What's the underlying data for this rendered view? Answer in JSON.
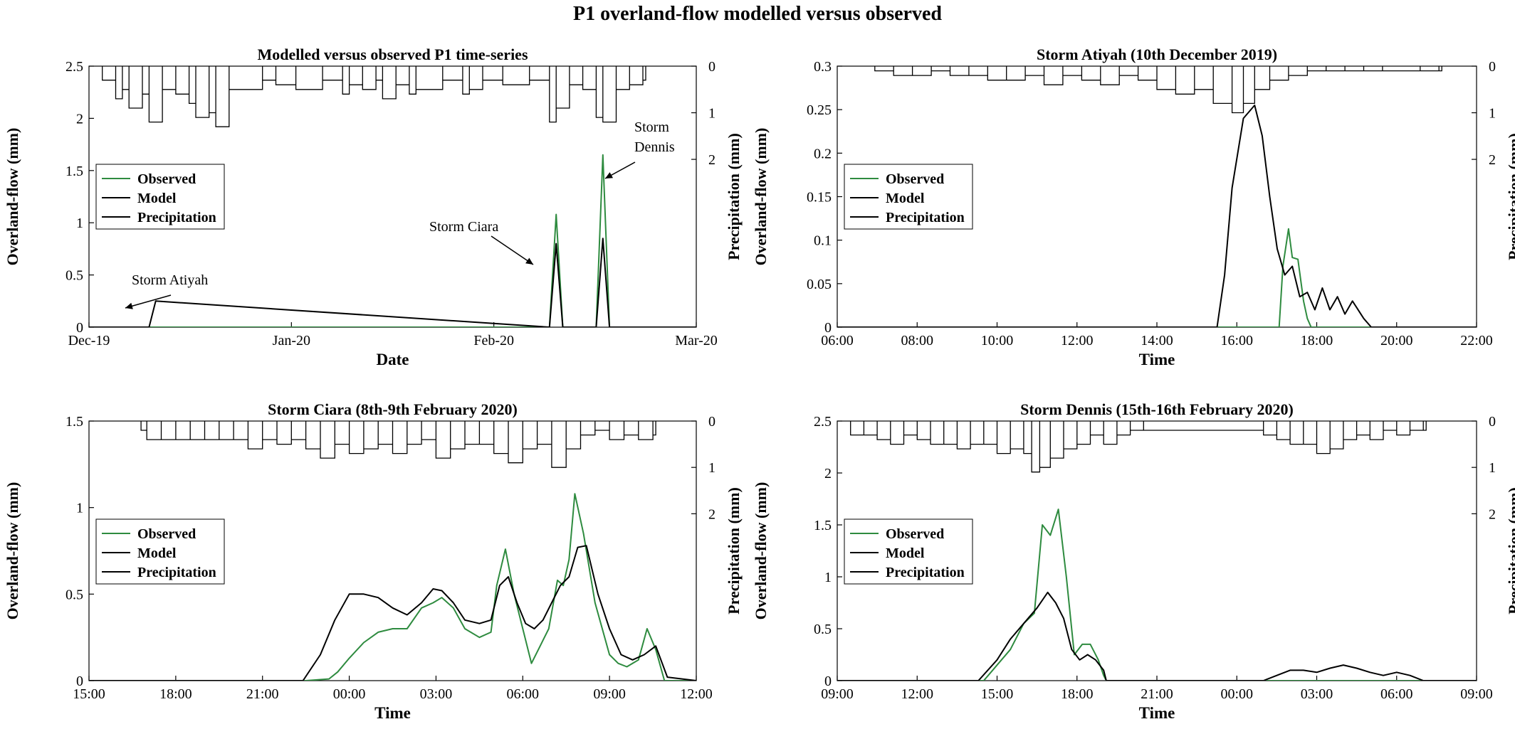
{
  "figure": {
    "title": "P1 overland-flow modelled versus observed"
  },
  "colors": {
    "observed": "#2e8b3f",
    "model": "#000000",
    "precipitation": "#000000",
    "axis": "#000000",
    "background": "#ffffff"
  },
  "chart_data": [
    {
      "type": "line",
      "title": "Modelled versus observed P1 time-series",
      "xlabel": "Date",
      "ylabel": "Overland-flow (mm)",
      "y2label": "Precipitation (mm)",
      "x_ticks": [
        "Dec-19",
        "Jan-20",
        "Feb-20",
        "Mar-20"
      ],
      "xlim": [
        "2019-12-01",
        "2020-03-01"
      ],
      "ylim": [
        0,
        2.5
      ],
      "y_ticks": [
        0,
        0.5,
        1,
        1.5,
        2,
        2.5
      ],
      "y2lim": [
        5.6,
        0
      ],
      "y2_ticks": [
        0,
        1,
        2
      ],
      "legend": {
        "position": "left-middle",
        "entries": [
          "Observed",
          "Model",
          "Precipitation"
        ]
      },
      "annotations": [
        {
          "text": "Storm Atiyah"
        },
        {
          "text": "Storm Ciara"
        },
        {
          "text": "Storm Dennis",
          "lines": [
            "Storm",
            "Dennis"
          ]
        }
      ],
      "series": [
        {
          "name": "Observed",
          "x": [
            "2019-12-01",
            "2019-12-10",
            "2020-02-08",
            "2020-02-09",
            "2020-02-10",
            "2020-02-15",
            "2020-02-16",
            "2020-02-17",
            "2020-03-01"
          ],
          "values": [
            0,
            0,
            0,
            1.08,
            0,
            0,
            1.65,
            0,
            0
          ]
        },
        {
          "name": "Model",
          "x": [
            "2019-12-01",
            "2019-12-10",
            "2019-12-11",
            "2020-02-08",
            "2020-02-09",
            "2020-02-10",
            "2020-02-15",
            "2020-02-16",
            "2020-02-17",
            "2020-03-01"
          ],
          "values": [
            0,
            0,
            0.25,
            0,
            0.8,
            0,
            0,
            0.85,
            0,
            0
          ]
        },
        {
          "name": "Precipitation",
          "x": [
            "2019-12-03",
            "2019-12-05",
            "2019-12-06",
            "2019-12-07",
            "2019-12-09",
            "2019-12-10",
            "2019-12-12",
            "2019-12-14",
            "2019-12-16",
            "2019-12-17",
            "2019-12-19",
            "2019-12-20",
            "2019-12-22",
            "2019-12-27",
            "2019-12-29",
            "2020-01-01",
            "2020-01-05",
            "2020-01-08",
            "2020-01-09",
            "2020-01-11",
            "2020-01-13",
            "2020-01-14",
            "2020-01-16",
            "2020-01-18",
            "2020-01-19",
            "2020-01-23",
            "2020-01-26",
            "2020-01-27",
            "2020-01-29",
            "2020-02-01",
            "2020-02-05",
            "2020-02-08",
            "2020-02-09",
            "2020-02-11",
            "2020-02-13",
            "2020-02-15",
            "2020-02-16",
            "2020-02-18",
            "2020-02-20",
            "2020-02-22"
          ],
          "values": [
            0.3,
            0.7,
            0.5,
            0.9,
            0.6,
            1.2,
            0.5,
            0.6,
            0.8,
            1.1,
            1.0,
            1.3,
            0.5,
            0.3,
            0.4,
            0.5,
            0.3,
            0.6,
            0.4,
            0.5,
            0.3,
            0.7,
            0.4,
            0.6,
            0.5,
            0.3,
            0.6,
            0.5,
            0.3,
            0.4,
            0.3,
            1.2,
            0.9,
            0.4,
            0.5,
            1.1,
            1.2,
            0.5,
            0.4,
            0.3
          ]
        }
      ]
    },
    {
      "type": "line",
      "title": "Storm Atiyah (10th December 2019)",
      "xlabel": "Time",
      "ylabel": "Overland-flow (mm)",
      "y2label": "Precipitation (mm)",
      "x_ticks": [
        "06:00",
        "08:00",
        "10:00",
        "12:00",
        "14:00",
        "16:00",
        "18:00",
        "20:00",
        "22:00"
      ],
      "xlim": [
        5.5,
        22.5
      ],
      "ylim": [
        0,
        0.3
      ],
      "y_ticks": [
        0,
        0.05,
        0.1,
        0.15,
        0.2,
        0.25,
        0.3
      ],
      "y2lim": [
        5.6,
        0
      ],
      "y2_ticks": [
        0,
        1,
        2
      ],
      "legend": {
        "position": "left-middle",
        "entries": [
          "Observed",
          "Model",
          "Precipitation"
        ]
      },
      "series": [
        {
          "name": "Observed",
          "x": [
            5.5,
            17.25,
            17.35,
            17.5,
            17.6,
            17.75,
            17.9,
            18.0,
            18.1,
            22.5
          ],
          "values": [
            0,
            0,
            0.07,
            0.113,
            0.08,
            0.078,
            0.03,
            0.01,
            0,
            0
          ]
        },
        {
          "name": "Model",
          "x": [
            5.5,
            15.6,
            15.8,
            16.0,
            16.3,
            16.6,
            16.8,
            17.0,
            17.2,
            17.4,
            17.6,
            17.8,
            18.0,
            18.2,
            18.4,
            18.6,
            18.8,
            19.0,
            19.2,
            19.5,
            19.7,
            22.5
          ],
          "values": [
            0,
            0,
            0.06,
            0.16,
            0.24,
            0.255,
            0.22,
            0.15,
            0.09,
            0.06,
            0.07,
            0.035,
            0.04,
            0.02,
            0.045,
            0.02,
            0.035,
            0.015,
            0.03,
            0.01,
            0,
            0
          ]
        },
        {
          "name": "Precipitation",
          "x": [
            6.5,
            7.0,
            7.5,
            8.0,
            8.5,
            9.0,
            9.5,
            10.0,
            10.5,
            11.0,
            11.5,
            12.0,
            12.5,
            13.0,
            13.5,
            14.0,
            14.5,
            15.0,
            15.5,
            16.0,
            16.3,
            16.6,
            17.0,
            17.5,
            18.0,
            18.5,
            19.0,
            19.5,
            20.0,
            21.0,
            21.5
          ],
          "values": [
            0.1,
            0.2,
            0.2,
            0.1,
            0.2,
            0.2,
            0.3,
            0.3,
            0.2,
            0.4,
            0.2,
            0.3,
            0.4,
            0.2,
            0.3,
            0.5,
            0.6,
            0.5,
            0.8,
            1.0,
            0.8,
            0.5,
            0.3,
            0.2,
            0.1,
            0.1,
            0.1,
            0.1,
            0.1,
            0.1,
            0.1
          ]
        }
      ]
    },
    {
      "type": "line",
      "title": "Storm Ciara (8th-9th February 2020)",
      "xlabel": "Time",
      "ylabel": "Overland-flow (mm)",
      "y2label": "Precipitation (mm)",
      "x_ticks": [
        "15:00",
        "18:00",
        "21:00",
        "00:00",
        "03:00",
        "06:00",
        "09:00",
        "12:00"
      ],
      "xlim": [
        15,
        36
      ],
      "ylim": [
        0,
        1.5
      ],
      "y_ticks": [
        0,
        0.5,
        1,
        1.5
      ],
      "y2lim": [
        5.6,
        0
      ],
      "y2_ticks": [
        0,
        1,
        2
      ],
      "legend": {
        "position": "left-middle",
        "entries": [
          "Observed",
          "Model",
          "Precipitation"
        ]
      },
      "series": [
        {
          "name": "Observed",
          "x": [
            15,
            22.5,
            23.3,
            23.6,
            24.0,
            24.5,
            25.0,
            25.5,
            26.0,
            26.5,
            26.9,
            27.2,
            27.6,
            28.0,
            28.5,
            28.9,
            29.1,
            29.4,
            29.7,
            30.0,
            30.3,
            30.6,
            30.9,
            31.2,
            31.4,
            31.6,
            31.8,
            32.1,
            32.5,
            33.0,
            33.3,
            33.6,
            34.0,
            34.3,
            34.6,
            34.9,
            36
          ],
          "values": [
            0,
            0,
            0.01,
            0.05,
            0.13,
            0.22,
            0.28,
            0.3,
            0.3,
            0.42,
            0.45,
            0.48,
            0.42,
            0.3,
            0.25,
            0.28,
            0.55,
            0.76,
            0.5,
            0.3,
            0.1,
            0.2,
            0.3,
            0.58,
            0.55,
            0.7,
            1.08,
            0.85,
            0.45,
            0.15,
            0.1,
            0.08,
            0.12,
            0.3,
            0.18,
            0.0,
            0
          ]
        },
        {
          "name": "Model",
          "x": [
            15,
            22.4,
            23.0,
            23.5,
            24.0,
            24.5,
            25.0,
            25.5,
            26.0,
            26.5,
            26.9,
            27.2,
            27.6,
            28.0,
            28.5,
            28.9,
            29.2,
            29.5,
            29.8,
            30.1,
            30.4,
            30.7,
            31.0,
            31.3,
            31.6,
            31.9,
            32.2,
            32.6,
            33.0,
            33.4,
            33.8,
            34.2,
            34.6,
            35.0,
            36
          ],
          "values": [
            0,
            0,
            0.15,
            0.35,
            0.5,
            0.5,
            0.48,
            0.42,
            0.38,
            0.45,
            0.53,
            0.52,
            0.45,
            0.35,
            0.33,
            0.35,
            0.55,
            0.6,
            0.45,
            0.33,
            0.3,
            0.35,
            0.45,
            0.55,
            0.6,
            0.77,
            0.78,
            0.5,
            0.3,
            0.15,
            0.12,
            0.15,
            0.2,
            0.02,
            0
          ]
        },
        {
          "name": "Precipitation",
          "x": [
            16.8,
            17.0,
            17.5,
            18.0,
            18.5,
            19.0,
            19.5,
            20.0,
            20.5,
            21.0,
            21.5,
            22.0,
            22.5,
            23.0,
            23.5,
            24.0,
            24.5,
            25.0,
            25.5,
            26.0,
            26.5,
            27.0,
            27.5,
            28.0,
            28.5,
            29.0,
            29.5,
            30.0,
            30.5,
            31.0,
            31.5,
            32.0,
            32.5,
            33.0,
            33.5,
            34.0,
            34.5
          ],
          "values": [
            0.2,
            0.4,
            0.4,
            0.4,
            0.4,
            0.4,
            0.4,
            0.4,
            0.6,
            0.4,
            0.5,
            0.4,
            0.6,
            0.8,
            0.5,
            0.7,
            0.6,
            0.5,
            0.7,
            0.5,
            0.4,
            0.8,
            0.6,
            0.5,
            0.5,
            0.7,
            0.9,
            0.6,
            0.5,
            1.0,
            0.6,
            0.3,
            0.2,
            0.4,
            0.3,
            0.4,
            0.3
          ]
        }
      ]
    },
    {
      "type": "line",
      "title": "Storm Dennis (15th-16th February 2020)",
      "xlabel": "Time",
      "ylabel": "Overland-flow (mm)",
      "y2label": "Precipitation (mm)",
      "x_ticks": [
        "09:00",
        "12:00",
        "15:00",
        "18:00",
        "21:00",
        "00:00",
        "03:00",
        "06:00",
        "09:00"
      ],
      "xlim": [
        9,
        33
      ],
      "ylim": [
        0,
        2.5
      ],
      "y_ticks": [
        0,
        0.5,
        1,
        1.5,
        2,
        2.5
      ],
      "y2lim": [
        5.6,
        0
      ],
      "y2_ticks": [
        0,
        1,
        2
      ],
      "legend": {
        "position": "left-middle",
        "entries": [
          "Observed",
          "Model",
          "Precipitation"
        ]
      },
      "series": [
        {
          "name": "Observed",
          "x": [
            9,
            14.5,
            15.5,
            16.0,
            16.4,
            16.7,
            17.0,
            17.3,
            17.6,
            17.9,
            18.2,
            18.5,
            18.8,
            19.0,
            19.1,
            33
          ],
          "values": [
            0,
            0,
            0.3,
            0.55,
            0.65,
            1.5,
            1.4,
            1.65,
            1.0,
            0.25,
            0.35,
            0.35,
            0.2,
            0.05,
            0,
            0
          ]
        },
        {
          "name": "Model",
          "x": [
            9,
            14.3,
            15.0,
            15.5,
            16.0,
            16.5,
            16.9,
            17.2,
            17.5,
            17.8,
            18.1,
            18.4,
            18.7,
            19.0,
            19.1,
            25.0,
            25.5,
            26.0,
            26.5,
            27.0,
            27.5,
            28.0,
            28.5,
            29.0,
            29.5,
            30.0,
            30.5,
            31.0,
            33
          ],
          "values": [
            0,
            0,
            0.2,
            0.4,
            0.55,
            0.7,
            0.85,
            0.75,
            0.6,
            0.3,
            0.2,
            0.25,
            0.2,
            0.1,
            0,
            0,
            0.05,
            0.1,
            0.1,
            0.08,
            0.12,
            0.15,
            0.12,
            0.08,
            0.05,
            0.08,
            0.05,
            0.0,
            0
          ]
        },
        {
          "name": "Precipitation",
          "x": [
            9.5,
            10.0,
            10.5,
            11.0,
            11.5,
            12.0,
            12.5,
            13.0,
            13.5,
            14.0,
            14.5,
            15.0,
            15.5,
            16.0,
            16.3,
            16.6,
            17.0,
            17.5,
            18.0,
            18.5,
            19.0,
            19.5,
            20.0,
            20.5,
            25.0,
            25.5,
            26.0,
            26.5,
            27.0,
            27.5,
            28.0,
            28.5,
            29.0,
            29.5,
            30.0,
            30.5,
            31.0
          ],
          "values": [
            0.3,
            0.3,
            0.4,
            0.5,
            0.3,
            0.4,
            0.5,
            0.5,
            0.6,
            0.5,
            0.5,
            0.7,
            0.6,
            0.7,
            1.1,
            1.0,
            0.8,
            0.6,
            0.5,
            0.3,
            0.5,
            0.3,
            0.2,
            0.2,
            0.3,
            0.4,
            0.5,
            0.5,
            0.7,
            0.6,
            0.4,
            0.3,
            0.4,
            0.2,
            0.3,
            0.2,
            0.2
          ]
        }
      ]
    }
  ]
}
